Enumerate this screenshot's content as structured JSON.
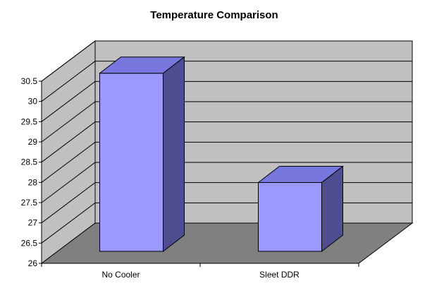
{
  "chart_data": {
    "type": "bar",
    "title": "Temperature Comparison",
    "categories": [
      "No Cooler",
      "Sleet DDR"
    ],
    "values": [
      30.4,
      27.7
    ],
    "ylim": [
      26,
      30.5
    ],
    "yticks": [
      "26",
      "26.5",
      "27",
      "27.5",
      "28",
      "28.5",
      "29",
      "29.5",
      "30",
      "30.5"
    ],
    "xlabel": "",
    "ylabel": "",
    "grid": true,
    "legend": "none",
    "three_d": true,
    "colors": {
      "bar_front": "#9999FF",
      "bar_top": "#7777DD",
      "bar_side": "#4D4D8F",
      "wall": "#C0C0C0",
      "floor": "#808080",
      "gridline": "#000000"
    }
  }
}
